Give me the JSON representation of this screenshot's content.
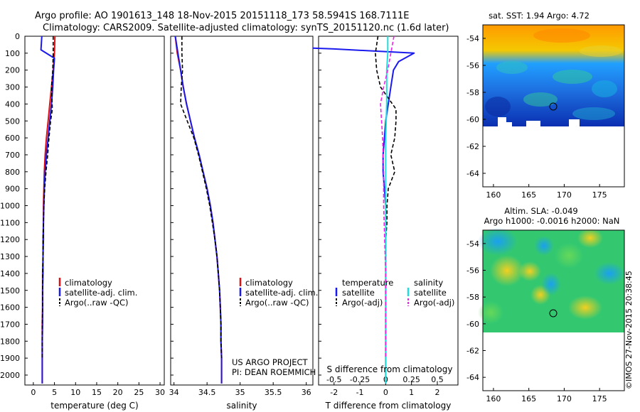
{
  "header": {
    "title_line1": "Argo profile: AO 1901613_148 18-Nov-2015 20151118_173 58.5941S 168.7111E",
    "title_line2": "Climatology: CARS2009. Satellite-adjusted climatology: synTS_20151120.nc (1.6d later)"
  },
  "credit": "©IMOS 27-Nov-2015 20:38:45",
  "colors": {
    "climatology": "#dd1111",
    "satellite": "#1a1aee",
    "argo": "#000000",
    "sat_salinity": "#22dddd",
    "argo_salinity": "#ee22ee"
  },
  "depth_ticks": [
    0,
    100,
    200,
    300,
    400,
    500,
    600,
    700,
    800,
    900,
    1000,
    1100,
    1200,
    1300,
    1400,
    1500,
    1600,
    1700,
    1800,
    1900,
    2000
  ],
  "panels": {
    "temperature": {
      "xlabel": "temperature (deg C)",
      "xticks": [
        "0",
        "5",
        "10",
        "15",
        "20",
        "25",
        "30"
      ],
      "legend": [
        "climatology",
        "satellite-adj. clim.",
        "Argo(..raw -QC)"
      ]
    },
    "salinity": {
      "xlabel": "salinity",
      "xticks": [
        "34",
        "34.5",
        "35",
        "35.5",
        "36"
      ],
      "legend": [
        "climatology",
        "satellite-adj. clim.",
        "Argo(..raw -QC)"
      ],
      "project_line1": "US ARGO PROJECT",
      "project_line2": "PI: DEAN ROEMMICH"
    },
    "difference": {
      "xlabel": "T difference from climatology",
      "xticks": [
        "-2",
        "-1",
        "0",
        "1",
        "2"
      ],
      "top_label": "S difference from climatology",
      "top_ticks": [
        "-0.5",
        "-0.25",
        "0",
        "0.25",
        "0.5"
      ],
      "legend_temp_title": "temperature",
      "legend_sal_title": "salinity",
      "legend_temp": [
        "satellite",
        "Argo(-adj)"
      ],
      "legend_sal": [
        "satellite",
        "Argo(-adj)"
      ]
    },
    "sst_map": {
      "title": "sat. SST: 1.94  Argo: 4.72",
      "yticks": [
        "-54",
        "-56",
        "-58",
        "-60",
        "-62",
        "-64"
      ],
      "xticks": [
        "160",
        "165",
        "170",
        "175"
      ]
    },
    "sla_map": {
      "title_line1": "Altim. SLA: -0.049",
      "title_line2": "Argo h1000: -0.0016 h2000: NaN",
      "yticks": [
        "-54",
        "-56",
        "-58",
        "-60",
        "-62",
        "-64"
      ],
      "xticks": [
        "160",
        "165",
        "170",
        "175"
      ]
    }
  },
  "chart_data": [
    {
      "type": "line",
      "title": "",
      "xlabel": "temperature (deg C)",
      "ylabel": "",
      "xlim": [
        -2,
        31
      ],
      "ylim": [
        2060,
        0
      ],
      "series": [
        {
          "name": "climatology",
          "x": [
            5.1,
            5.0,
            4.7,
            4.3,
            3.9,
            3.5,
            3.1,
            2.8,
            2.6,
            2.5,
            2.4,
            2.4,
            2.3,
            2.3,
            2.2,
            2.2,
            2.2,
            2.1,
            2.1,
            2.1,
            2.1
          ],
          "y": [
            0,
            100,
            200,
            300,
            400,
            500,
            600,
            700,
            800,
            900,
            1000,
            1100,
            1200,
            1300,
            1400,
            1500,
            1600,
            1700,
            1800,
            1900,
            2050
          ]
        },
        {
          "name": "satellite-adj. clim.",
          "x": [
            2.0,
            1.8,
            5.0,
            4.8,
            4.6,
            4.3,
            3.9,
            3.5,
            3.1,
            2.8,
            2.6,
            2.5,
            2.4,
            2.4,
            2.3,
            2.3,
            2.2,
            2.2,
            2.2,
            2.1,
            2.1,
            2.1
          ],
          "y": [
            0,
            80,
            130,
            200,
            300,
            400,
            500,
            600,
            700,
            800,
            900,
            1000,
            1100,
            1200,
            1300,
            1400,
            1500,
            1600,
            1700,
            1800,
            1900,
            2050
          ]
        },
        {
          "name": "Argo(..raw -QC)",
          "x": [
            4.7,
            4.7,
            4.6,
            4.3,
            4.5,
            4.1,
            3.7,
            3.4,
            3.0,
            2.7,
            2.5,
            2.4,
            2.3,
            2.3,
            2.2,
            2.2,
            2.2,
            2.1,
            2.1,
            2.1
          ],
          "y": [
            0,
            100,
            200,
            300,
            430,
            500,
            600,
            700,
            800,
            900,
            1000,
            1100,
            1200,
            1300,
            1400,
            1500,
            1600,
            1700,
            1800,
            1900
          ]
        }
      ]
    },
    {
      "type": "line",
      "title": "",
      "xlabel": "salinity",
      "ylabel": "",
      "xlim": [
        33.95,
        36.1
      ],
      "ylim": [
        2060,
        0
      ],
      "series": [
        {
          "name": "climatology",
          "x": [
            34.02,
            34.05,
            34.1,
            34.14,
            34.19,
            34.25,
            34.31,
            34.38,
            34.44,
            34.5,
            34.55,
            34.59,
            34.62,
            34.65,
            34.67,
            34.69,
            34.7,
            34.71,
            34.71,
            34.72,
            34.72
          ],
          "y": [
            0,
            100,
            200,
            300,
            400,
            500,
            600,
            700,
            800,
            900,
            1000,
            1100,
            1200,
            1300,
            1400,
            1500,
            1600,
            1700,
            1800,
            1900,
            2050
          ]
        },
        {
          "name": "satellite-adj. clim.",
          "x": [
            34.02,
            34.06,
            34.1,
            34.14,
            34.19,
            34.25,
            34.31,
            34.38,
            34.44,
            34.5,
            34.55,
            34.59,
            34.62,
            34.65,
            34.67,
            34.69,
            34.7,
            34.71,
            34.71,
            34.72,
            34.72
          ],
          "y": [
            0,
            100,
            200,
            300,
            400,
            500,
            600,
            700,
            800,
            900,
            1000,
            1100,
            1200,
            1300,
            1400,
            1500,
            1600,
            1700,
            1800,
            1900,
            2050
          ]
        },
        {
          "name": "Argo(..raw -QC)",
          "x": [
            34.12,
            34.12,
            34.13,
            34.11,
            34.1,
            34.2,
            34.3,
            34.37,
            34.43,
            34.49,
            34.54,
            34.58,
            34.62,
            34.65,
            34.67,
            34.69,
            34.7,
            34.71,
            34.71,
            34.72
          ],
          "y": [
            0,
            100,
            200,
            300,
            400,
            500,
            600,
            700,
            800,
            900,
            1000,
            1100,
            1200,
            1300,
            1400,
            1500,
            1600,
            1700,
            1800,
            1900
          ]
        }
      ]
    },
    {
      "type": "line",
      "title": "",
      "xlabel": "T difference from climatology",
      "ylabel": "",
      "xlim": [
        -2.6,
        2.8
      ],
      "ylim": [
        2060,
        0
      ],
      "series": [
        {
          "name": "temperature satellite",
          "x": [
            -3.1,
            -2.0,
            1.1,
            0.5,
            0.3,
            0.2,
            0.1,
            0.0,
            -0.05,
            -0.1,
            -0.1,
            -0.05,
            0.0,
            0.0,
            0.0,
            0.0,
            0.0,
            0.0,
            0.0,
            0.0,
            0.0
          ],
          "y": [
            70,
            75,
            100,
            150,
            200,
            300,
            400,
            500,
            600,
            700,
            800,
            900,
            1000,
            1100,
            1200,
            1400,
            1600,
            1700,
            1800,
            1900,
            2050
          ]
        },
        {
          "name": "temperature Argo(-adj)",
          "x": [
            -0.3,
            -0.4,
            -0.35,
            -0.2,
            0.4,
            0.4,
            0.35,
            0.2,
            0.35,
            0.1,
            0.05,
            0.05,
            0.0,
            0.0,
            0.0,
            0.0,
            0.0
          ],
          "y": [
            0,
            100,
            200,
            300,
            430,
            500,
            600,
            700,
            800,
            900,
            1000,
            1100,
            1200,
            1400,
            1600,
            1800,
            1900
          ]
        },
        {
          "name": "salinity satellite",
          "x": [
            0.02,
            0.02,
            0.01,
            0.01,
            0.0,
            0.0,
            0.0,
            0.0,
            0.0,
            0.0,
            0.0,
            0.0,
            0.0
          ],
          "y": [
            0,
            100,
            200,
            400,
            600,
            800,
            1000,
            1200,
            1400,
            1600,
            1800,
            1900,
            2050
          ]
        },
        {
          "name": "salinity Argo(-adj)",
          "x": [
            0.08,
            0.05,
            0.02,
            -0.02,
            -0.05,
            -0.03,
            -0.02,
            -0.02,
            -0.01,
            0.0,
            0.0,
            0.0
          ],
          "y": [
            0,
            100,
            200,
            300,
            400,
            600,
            800,
            1000,
            1200,
            1400,
            1600,
            1900
          ]
        }
      ]
    }
  ]
}
